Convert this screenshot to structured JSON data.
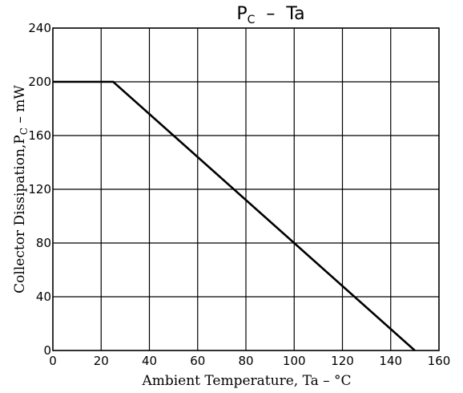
{
  "chart_data": {
    "type": "line",
    "title": {
      "main": "P",
      "subscript": "C",
      "rest": "  –  Ta"
    },
    "xlabel": "Ambient Temperature, Ta – °C",
    "ylabel": {
      "main": "Collector Dissipation,P",
      "subscript": "C",
      "rest": " – mW"
    },
    "xlim": [
      0,
      160
    ],
    "ylim": [
      0,
      240
    ],
    "xticks": [
      0,
      20,
      40,
      60,
      80,
      100,
      120,
      140,
      160
    ],
    "yticks": [
      0,
      40,
      80,
      120,
      160,
      200,
      240
    ],
    "xtick_labels": [
      "0",
      "20",
      "40",
      "60",
      "80",
      "100",
      "120",
      "140",
      "160"
    ],
    "ytick_labels": [
      "0",
      "40",
      "80",
      "120",
      "160",
      "200",
      "240"
    ],
    "grid": true,
    "series": [
      {
        "x": [
          0,
          25,
          150
        ],
        "y": [
          200,
          200,
          0
        ],
        "color": "#000000"
      }
    ]
  }
}
